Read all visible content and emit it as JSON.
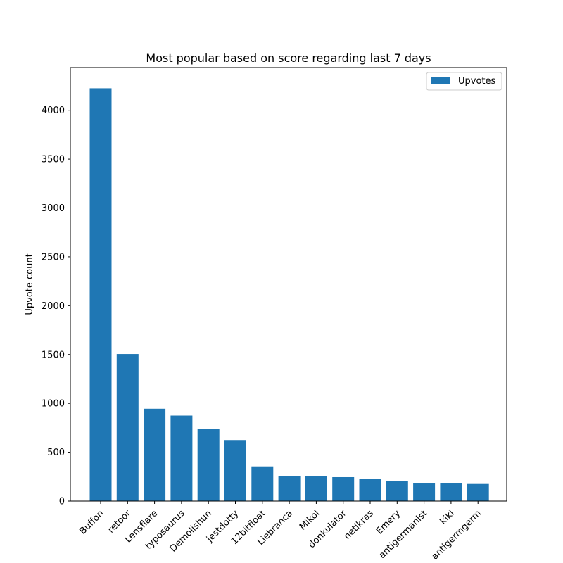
{
  "chart_data": {
    "type": "bar",
    "title": "Most popular based on score regarding last 7 days",
    "xlabel": "",
    "ylabel": "Upvote count",
    "categories": [
      "Buffon",
      "retoor",
      "Lensflare",
      "typosaurus",
      "Demolishun",
      "jestdotty",
      "12bitfloat",
      "Liebranca",
      "Mikol",
      "donkulator",
      "netikras",
      "Emery",
      "antigermanist",
      "kiki",
      "antigermgerm"
    ],
    "series": [
      {
        "name": "Upvotes",
        "values": [
          4225,
          1505,
          945,
          875,
          735,
          625,
          355,
          255,
          255,
          245,
          230,
          205,
          180,
          180,
          175
        ]
      }
    ],
    "ylim": [
      0,
      4437
    ],
    "yticks": [
      0,
      500,
      1000,
      1500,
      2000,
      2500,
      3000,
      3500,
      4000
    ],
    "grid": false,
    "legend": "top-right",
    "colors": {
      "bar": "#1f77b4",
      "axis": "#000000",
      "legend_border": "#cccccc"
    }
  }
}
